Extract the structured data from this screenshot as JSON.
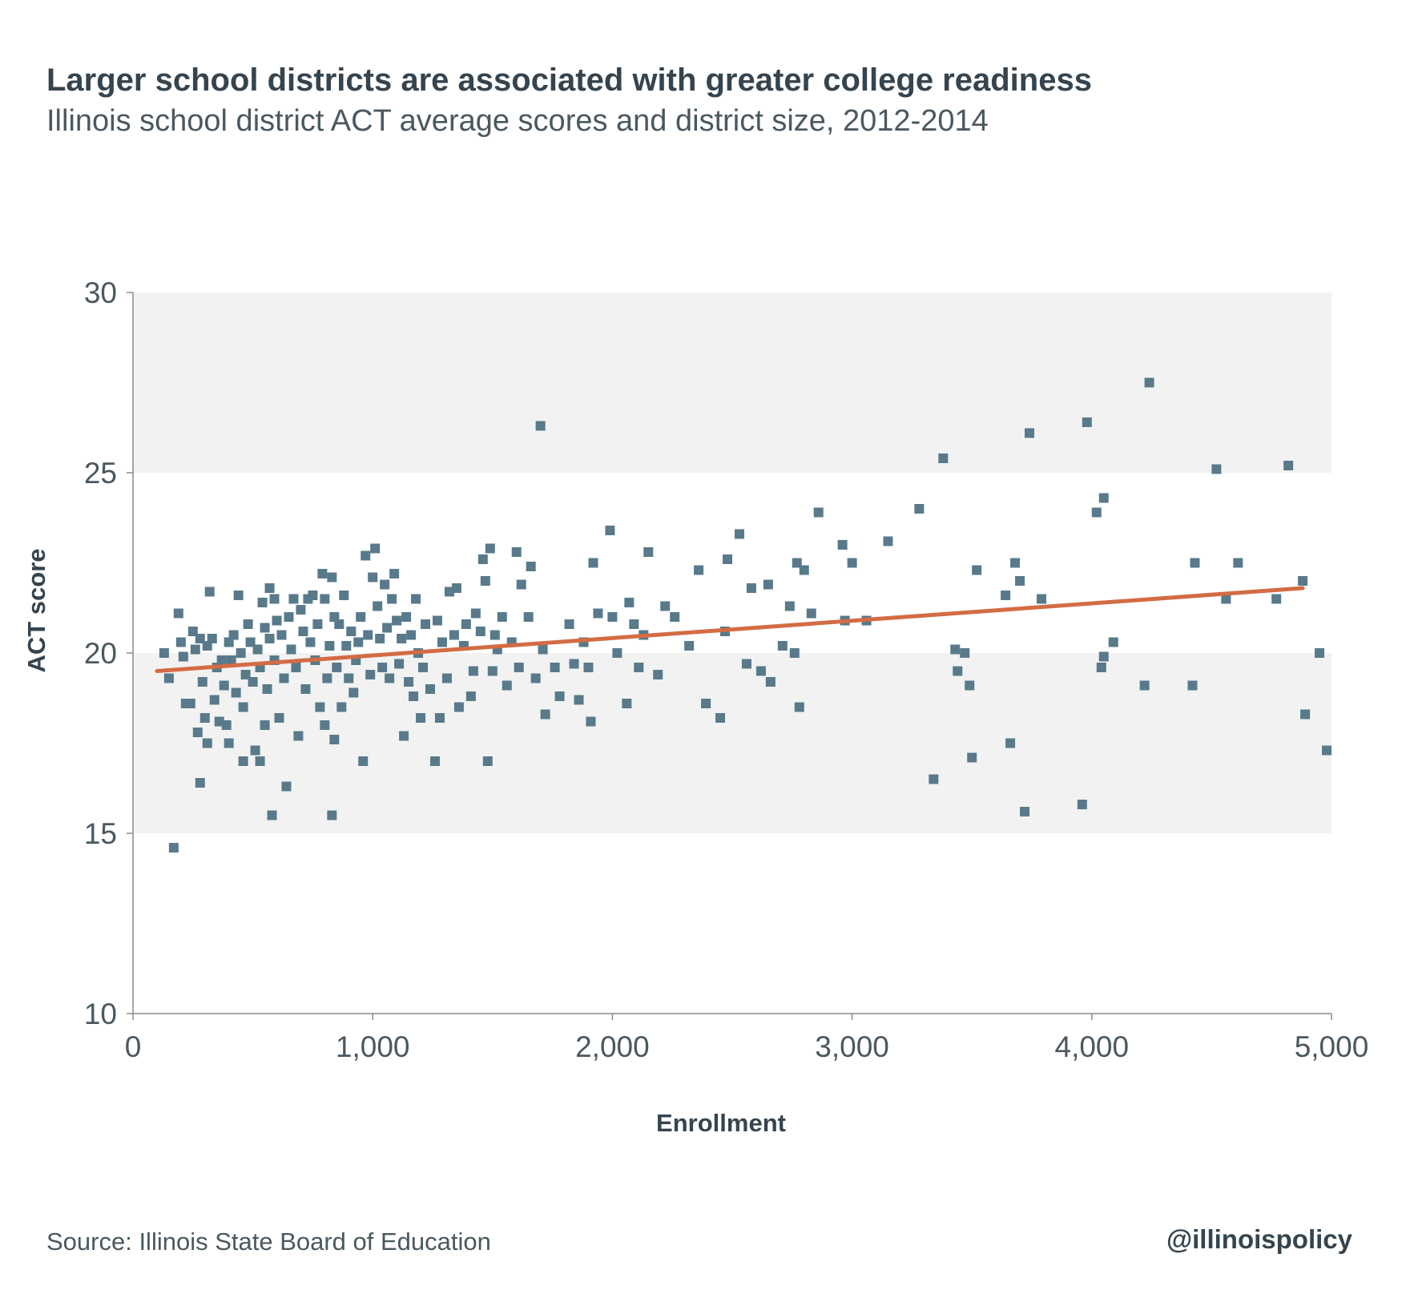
{
  "header": {
    "title": "Larger school districts are associated with greater college readiness",
    "subtitle": "Illinois school district ACT average scores and district size, 2012-2014"
  },
  "footer": {
    "source": "Source:  Illinois State Board of Education",
    "handle": "@illinoispolicy"
  },
  "chart_data": {
    "type": "scatter",
    "title": "Larger school districts are associated with greater college readiness",
    "subtitle": "Illinois school district ACT average scores and district size, 2012-2014",
    "xlabel": "Enrollment",
    "ylabel": "ACT score",
    "xlim": [
      0,
      5000
    ],
    "ylim": [
      10,
      30
    ],
    "x_ticks": [
      0,
      1000,
      2000,
      3000,
      4000,
      5000
    ],
    "x_tick_labels": [
      "0",
      "1,000",
      "2,000",
      "3,000",
      "4,000",
      "5,000"
    ],
    "y_ticks": [
      10,
      15,
      20,
      25,
      30
    ],
    "y_tick_labels": [
      "10",
      "15",
      "20",
      "25",
      "30"
    ],
    "background_bands": [
      [
        15,
        20
      ],
      [
        25,
        30
      ]
    ],
    "grid": false,
    "colors": {
      "points": "#587a8a",
      "trend": "#d36c44",
      "band": "#f2f2f2",
      "axis": "#8a8a8a"
    },
    "series": [
      {
        "values": [
          [
            130,
            20.0
          ],
          [
            150,
            19.3
          ],
          [
            170,
            14.6
          ],
          [
            190,
            21.1
          ],
          [
            200,
            20.3
          ],
          [
            210,
            19.9
          ],
          [
            220,
            18.6
          ],
          [
            240,
            18.6
          ],
          [
            250,
            20.6
          ],
          [
            260,
            20.1
          ],
          [
            270,
            17.8
          ],
          [
            280,
            20.4
          ],
          [
            280,
            16.4
          ],
          [
            290,
            19.2
          ],
          [
            300,
            18.2
          ],
          [
            310,
            20.2
          ],
          [
            310,
            17.5
          ],
          [
            320,
            21.7
          ],
          [
            330,
            20.4
          ],
          [
            340,
            18.7
          ],
          [
            350,
            19.6
          ],
          [
            360,
            18.1
          ],
          [
            370,
            19.8
          ],
          [
            380,
            19.1
          ],
          [
            390,
            18.0
          ],
          [
            400,
            20.3
          ],
          [
            400,
            17.5
          ],
          [
            410,
            19.8
          ],
          [
            420,
            20.5
          ],
          [
            430,
            18.9
          ],
          [
            440,
            21.6
          ],
          [
            450,
            20.0
          ],
          [
            460,
            18.5
          ],
          [
            460,
            17.0
          ],
          [
            470,
            19.4
          ],
          [
            480,
            20.8
          ],
          [
            490,
            20.3
          ],
          [
            500,
            19.2
          ],
          [
            510,
            17.3
          ],
          [
            520,
            20.1
          ],
          [
            530,
            19.6
          ],
          [
            530,
            17.0
          ],
          [
            540,
            21.4
          ],
          [
            550,
            20.7
          ],
          [
            550,
            18.0
          ],
          [
            560,
            19.0
          ],
          [
            570,
            21.8
          ],
          [
            570,
            20.4
          ],
          [
            580,
            15.5
          ],
          [
            590,
            21.5
          ],
          [
            590,
            19.8
          ],
          [
            600,
            20.9
          ],
          [
            610,
            18.2
          ],
          [
            620,
            20.5
          ],
          [
            630,
            19.3
          ],
          [
            640,
            16.3
          ],
          [
            650,
            21.0
          ],
          [
            660,
            20.1
          ],
          [
            670,
            21.5
          ],
          [
            680,
            19.6
          ],
          [
            690,
            17.7
          ],
          [
            700,
            21.2
          ],
          [
            710,
            20.6
          ],
          [
            720,
            19.0
          ],
          [
            730,
            21.5
          ],
          [
            740,
            20.3
          ],
          [
            750,
            21.6
          ],
          [
            760,
            19.8
          ],
          [
            770,
            20.8
          ],
          [
            780,
            18.5
          ],
          [
            790,
            22.2
          ],
          [
            800,
            21.5
          ],
          [
            800,
            18.0
          ],
          [
            810,
            19.3
          ],
          [
            820,
            20.2
          ],
          [
            830,
            22.1
          ],
          [
            830,
            15.5
          ],
          [
            840,
            21.0
          ],
          [
            840,
            17.6
          ],
          [
            850,
            19.6
          ],
          [
            860,
            20.8
          ],
          [
            870,
            18.5
          ],
          [
            880,
            21.6
          ],
          [
            890,
            20.2
          ],
          [
            900,
            19.3
          ],
          [
            910,
            20.6
          ],
          [
            920,
            18.9
          ],
          [
            930,
            19.8
          ],
          [
            940,
            20.3
          ],
          [
            950,
            21.0
          ],
          [
            960,
            17.0
          ],
          [
            970,
            22.7
          ],
          [
            980,
            20.5
          ],
          [
            990,
            19.4
          ],
          [
            1000,
            22.1
          ],
          [
            1010,
            22.9
          ],
          [
            1020,
            21.3
          ],
          [
            1030,
            20.4
          ],
          [
            1040,
            19.6
          ],
          [
            1050,
            21.9
          ],
          [
            1060,
            20.7
          ],
          [
            1070,
            19.3
          ],
          [
            1080,
            21.5
          ],
          [
            1090,
            22.2
          ],
          [
            1100,
            20.9
          ],
          [
            1110,
            19.7
          ],
          [
            1120,
            20.4
          ],
          [
            1130,
            17.7
          ],
          [
            1140,
            21.0
          ],
          [
            1150,
            19.2
          ],
          [
            1160,
            20.5
          ],
          [
            1170,
            18.8
          ],
          [
            1180,
            21.5
          ],
          [
            1190,
            20.0
          ],
          [
            1200,
            18.2
          ],
          [
            1210,
            19.6
          ],
          [
            1220,
            20.8
          ],
          [
            1240,
            19.0
          ],
          [
            1260,
            17.0
          ],
          [
            1270,
            20.9
          ],
          [
            1280,
            18.2
          ],
          [
            1290,
            20.3
          ],
          [
            1310,
            19.3
          ],
          [
            1320,
            21.7
          ],
          [
            1340,
            20.5
          ],
          [
            1350,
            21.8
          ],
          [
            1360,
            18.5
          ],
          [
            1380,
            20.2
          ],
          [
            1390,
            20.8
          ],
          [
            1410,
            18.8
          ],
          [
            1420,
            19.5
          ],
          [
            1430,
            21.1
          ],
          [
            1450,
            20.6
          ],
          [
            1460,
            22.6
          ],
          [
            1470,
            22.0
          ],
          [
            1480,
            17.0
          ],
          [
            1490,
            22.9
          ],
          [
            1500,
            19.5
          ],
          [
            1510,
            20.5
          ],
          [
            1520,
            20.1
          ],
          [
            1540,
            21.0
          ],
          [
            1560,
            19.1
          ],
          [
            1580,
            20.3
          ],
          [
            1600,
            22.8
          ],
          [
            1610,
            19.6
          ],
          [
            1620,
            21.9
          ],
          [
            1650,
            21.0
          ],
          [
            1660,
            22.4
          ],
          [
            1680,
            19.3
          ],
          [
            1700,
            26.3
          ],
          [
            1710,
            20.1
          ],
          [
            1720,
            18.3
          ],
          [
            1760,
            19.6
          ],
          [
            1780,
            18.8
          ],
          [
            1820,
            20.8
          ],
          [
            1840,
            19.7
          ],
          [
            1860,
            18.7
          ],
          [
            1880,
            20.3
          ],
          [
            1900,
            19.6
          ],
          [
            1910,
            18.1
          ],
          [
            1920,
            22.5
          ],
          [
            1940,
            21.1
          ],
          [
            1990,
            23.4
          ],
          [
            2000,
            21.0
          ],
          [
            2020,
            20.0
          ],
          [
            2060,
            18.6
          ],
          [
            2070,
            21.4
          ],
          [
            2090,
            20.8
          ],
          [
            2110,
            19.6
          ],
          [
            2130,
            20.5
          ],
          [
            2150,
            22.8
          ],
          [
            2190,
            19.4
          ],
          [
            2220,
            21.3
          ],
          [
            2260,
            21.0
          ],
          [
            2320,
            20.2
          ],
          [
            2360,
            22.3
          ],
          [
            2390,
            18.6
          ],
          [
            2450,
            18.2
          ],
          [
            2470,
            20.6
          ],
          [
            2480,
            22.6
          ],
          [
            2530,
            23.3
          ],
          [
            2560,
            19.7
          ],
          [
            2580,
            21.8
          ],
          [
            2620,
            19.5
          ],
          [
            2650,
            21.9
          ],
          [
            2660,
            19.2
          ],
          [
            2710,
            20.2
          ],
          [
            2740,
            21.3
          ],
          [
            2760,
            20.0
          ],
          [
            2770,
            22.5
          ],
          [
            2780,
            18.5
          ],
          [
            2800,
            22.3
          ],
          [
            2830,
            21.1
          ],
          [
            2860,
            23.9
          ],
          [
            2960,
            23.0
          ],
          [
            2970,
            20.9
          ],
          [
            3000,
            22.5
          ],
          [
            3060,
            20.9
          ],
          [
            3150,
            23.1
          ],
          [
            3280,
            24.0
          ],
          [
            3340,
            16.5
          ],
          [
            3380,
            25.4
          ],
          [
            3430,
            20.1
          ],
          [
            3440,
            19.5
          ],
          [
            3470,
            20.0
          ],
          [
            3490,
            19.1
          ],
          [
            3500,
            17.1
          ],
          [
            3520,
            22.3
          ],
          [
            3640,
            21.6
          ],
          [
            3660,
            17.5
          ],
          [
            3680,
            22.5
          ],
          [
            3700,
            22.0
          ],
          [
            3720,
            15.6
          ],
          [
            3740,
            26.1
          ],
          [
            3790,
            21.5
          ],
          [
            3960,
            15.8
          ],
          [
            3980,
            26.4
          ],
          [
            4020,
            23.9
          ],
          [
            4050,
            24.3
          ],
          [
            4040,
            19.6
          ],
          [
            4050,
            19.9
          ],
          [
            4090,
            20.3
          ],
          [
            4220,
            19.1
          ],
          [
            4240,
            27.5
          ],
          [
            4420,
            19.1
          ],
          [
            4430,
            22.5
          ],
          [
            4520,
            25.1
          ],
          [
            4560,
            21.5
          ],
          [
            4610,
            22.5
          ],
          [
            4770,
            21.5
          ],
          [
            4820,
            25.2
          ],
          [
            4880,
            22.0
          ],
          [
            4890,
            18.3
          ],
          [
            4950,
            20.0
          ],
          [
            4980,
            17.3
          ]
        ]
      }
    ],
    "trendline": {
      "x": [
        100,
        4880
      ],
      "y": [
        19.5,
        21.8
      ]
    }
  }
}
